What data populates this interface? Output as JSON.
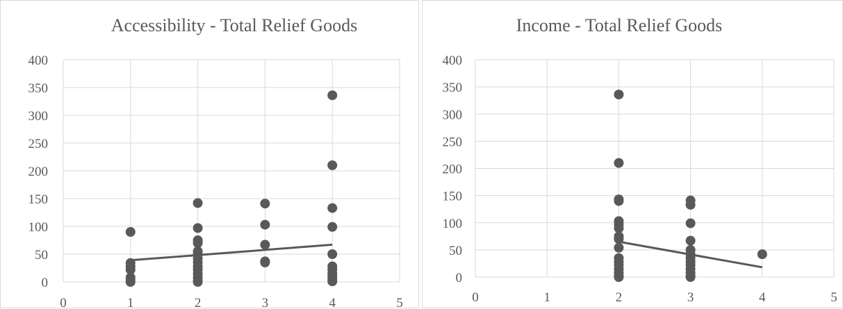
{
  "chart_data": [
    {
      "type": "scatter",
      "title": "Accessibility - Total Relief Goods",
      "xlim": [
        0,
        5
      ],
      "ylim": [
        0,
        400
      ],
      "x_ticks": [
        "0",
        "1",
        "2",
        "3",
        "4",
        "5"
      ],
      "y_ticks": [
        "0",
        "50",
        "100",
        "150",
        "200",
        "250",
        "300",
        "350",
        "400"
      ],
      "grid": true,
      "marker_color": "#595959",
      "points": [
        {
          "x": 1,
          "y": 90
        },
        {
          "x": 1,
          "y": 34
        },
        {
          "x": 1,
          "y": 28
        },
        {
          "x": 1,
          "y": 22
        },
        {
          "x": 1,
          "y": 8
        },
        {
          "x": 1,
          "y": 4
        },
        {
          "x": 1,
          "y": 0
        },
        {
          "x": 2,
          "y": 142
        },
        {
          "x": 2,
          "y": 97
        },
        {
          "x": 2,
          "y": 75
        },
        {
          "x": 2,
          "y": 70
        },
        {
          "x": 2,
          "y": 55
        },
        {
          "x": 2,
          "y": 50
        },
        {
          "x": 2,
          "y": 42
        },
        {
          "x": 2,
          "y": 35
        },
        {
          "x": 2,
          "y": 28
        },
        {
          "x": 2,
          "y": 22
        },
        {
          "x": 2,
          "y": 15
        },
        {
          "x": 2,
          "y": 8
        },
        {
          "x": 2,
          "y": 2
        },
        {
          "x": 2,
          "y": 0
        },
        {
          "x": 3,
          "y": 141
        },
        {
          "x": 3,
          "y": 103
        },
        {
          "x": 3,
          "y": 67
        },
        {
          "x": 3,
          "y": 37
        },
        {
          "x": 3,
          "y": 35
        },
        {
          "x": 4,
          "y": 336
        },
        {
          "x": 4,
          "y": 210
        },
        {
          "x": 4,
          "y": 133
        },
        {
          "x": 4,
          "y": 99
        },
        {
          "x": 4,
          "y": 50
        },
        {
          "x": 4,
          "y": 28
        },
        {
          "x": 4,
          "y": 22
        },
        {
          "x": 4,
          "y": 15
        },
        {
          "x": 4,
          "y": 10
        },
        {
          "x": 4,
          "y": 5
        },
        {
          "x": 4,
          "y": 1
        }
      ],
      "trendline": {
        "x": [
          1,
          4
        ],
        "y": [
          39,
          67
        ]
      }
    },
    {
      "type": "scatter",
      "title": "Income - Total Relief Goods",
      "xlim": [
        0,
        5
      ],
      "ylim": [
        0,
        400
      ],
      "x_ticks": [
        "0",
        "1",
        "2",
        "3",
        "4",
        "5"
      ],
      "y_ticks": [
        "0",
        "50",
        "100",
        "150",
        "200",
        "250",
        "300",
        "350",
        "400"
      ],
      "grid": true,
      "marker_color": "#595959",
      "points": [
        {
          "x": 2,
          "y": 336
        },
        {
          "x": 2,
          "y": 210
        },
        {
          "x": 2,
          "y": 143
        },
        {
          "x": 2,
          "y": 140
        },
        {
          "x": 2,
          "y": 103
        },
        {
          "x": 2,
          "y": 97
        },
        {
          "x": 2,
          "y": 90
        },
        {
          "x": 2,
          "y": 75
        },
        {
          "x": 2,
          "y": 70
        },
        {
          "x": 2,
          "y": 54
        },
        {
          "x": 2,
          "y": 35
        },
        {
          "x": 2,
          "y": 28
        },
        {
          "x": 2,
          "y": 22
        },
        {
          "x": 2,
          "y": 15
        },
        {
          "x": 2,
          "y": 8
        },
        {
          "x": 2,
          "y": 2
        },
        {
          "x": 2,
          "y": 0
        },
        {
          "x": 3,
          "y": 141
        },
        {
          "x": 3,
          "y": 133
        },
        {
          "x": 3,
          "y": 99
        },
        {
          "x": 3,
          "y": 67
        },
        {
          "x": 3,
          "y": 50
        },
        {
          "x": 3,
          "y": 42
        },
        {
          "x": 3,
          "y": 35
        },
        {
          "x": 3,
          "y": 28
        },
        {
          "x": 3,
          "y": 22
        },
        {
          "x": 3,
          "y": 15
        },
        {
          "x": 3,
          "y": 8
        },
        {
          "x": 3,
          "y": 2
        },
        {
          "x": 3,
          "y": 0
        },
        {
          "x": 4,
          "y": 42
        }
      ],
      "trendline": {
        "x": [
          2,
          4
        ],
        "y": [
          65,
          18
        ]
      }
    }
  ]
}
